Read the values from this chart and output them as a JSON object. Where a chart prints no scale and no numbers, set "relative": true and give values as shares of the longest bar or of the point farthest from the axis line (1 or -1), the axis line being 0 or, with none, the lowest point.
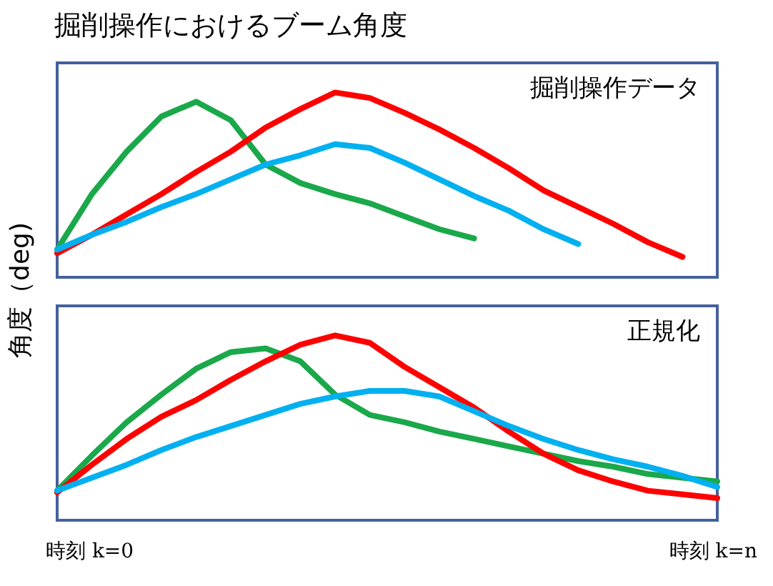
{
  "chart_data": [
    {
      "type": "line",
      "title": "掘削操作におけるブーム角度",
      "ylabel": "角度（deg)",
      "relative": true,
      "line_style": "solid",
      "marker": "none",
      "categories": [
        null,
        null,
        null,
        null,
        null,
        null,
        null,
        null,
        null,
        null,
        null,
        null,
        null,
        null,
        null,
        null,
        null,
        null,
        null,
        null
      ],
      "series": [
        {
          "color": "#1aa84a",
          "values": [
            0.15,
            0.45,
            0.68,
            0.87,
            0.95,
            0.85,
            0.61,
            0.51,
            0.45,
            0.4,
            0.33,
            0.26,
            0.21,
            null,
            null,
            null,
            null,
            null,
            null,
            null
          ]
        },
        {
          "color": "#ff0000",
          "values": [
            0.13,
            0.23,
            0.34,
            0.45,
            0.57,
            0.68,
            0.81,
            0.91,
            1,
            0.97,
            0.89,
            0.8,
            0.7,
            0.59,
            0.47,
            0.38,
            0.29,
            0.19,
            0.11,
            null
          ]
        },
        {
          "color": "#00b0f0",
          "values": [
            0.15,
            0.23,
            0.3,
            0.38,
            0.45,
            0.53,
            0.61,
            0.66,
            0.72,
            0.7,
            0.62,
            0.53,
            0.44,
            0.36,
            0.26,
            0.18,
            null,
            null,
            null,
            null
          ]
        }
      ],
      "annotations": [
        "掘削操作データ"
      ]
    },
    {
      "type": "line",
      "relative": true,
      "line_style": "solid",
      "marker": "none",
      "categories": [
        null,
        null,
        null,
        null,
        null,
        null,
        null,
        null,
        null,
        null,
        null,
        null,
        null,
        null,
        null,
        null,
        null,
        null,
        null,
        null
      ],
      "series": [
        {
          "color": "#1aa84a",
          "values": [
            0.16,
            0.35,
            0.53,
            0.68,
            0.82,
            0.91,
            0.93,
            0.86,
            0.68,
            0.57,
            0.53,
            0.48,
            0.44,
            0.4,
            0.36,
            0.32,
            0.29,
            0.25,
            0.23,
            0.21
          ]
        },
        {
          "color": "#ff0000",
          "values": [
            0.15,
            0.3,
            0.44,
            0.56,
            0.65,
            0.76,
            0.86,
            0.95,
            1,
            0.96,
            0.83,
            0.72,
            0.61,
            0.48,
            0.36,
            0.27,
            0.21,
            0.16,
            0.14,
            0.12
          ]
        },
        {
          "color": "#00b0f0",
          "values": [
            0.16,
            0.23,
            0.3,
            0.38,
            0.45,
            0.51,
            0.57,
            0.63,
            0.67,
            0.7,
            0.7,
            0.67,
            0.59,
            0.51,
            0.44,
            0.38,
            0.33,
            0.29,
            0.24,
            0.18
          ]
        }
      ],
      "annotations": [
        "正規化",
        "時刻 k=0",
        "時刻 k=n"
      ]
    }
  ]
}
